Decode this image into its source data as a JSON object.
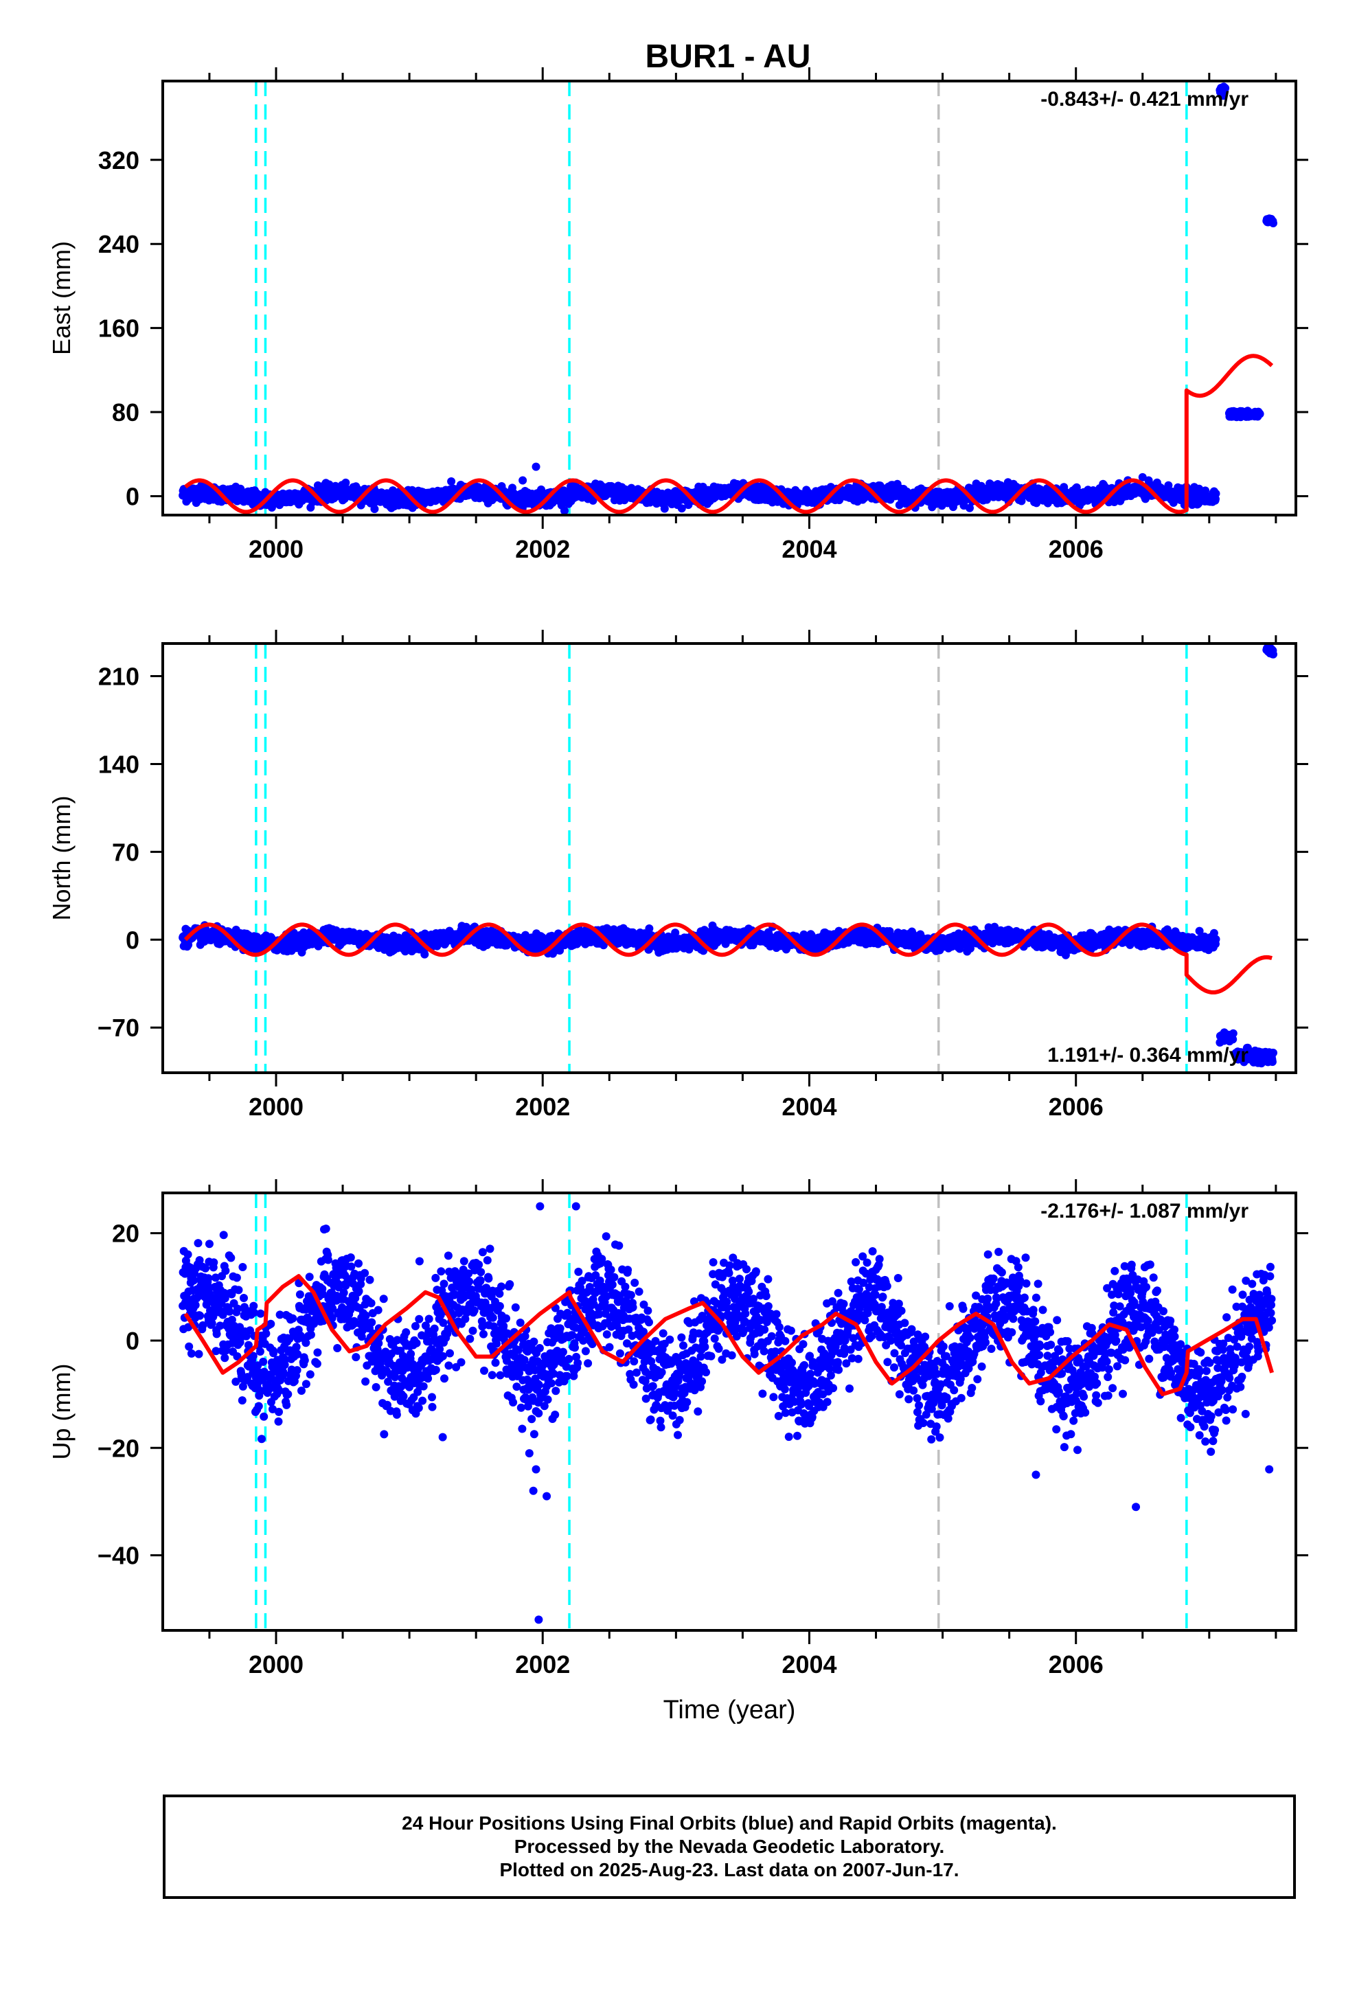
{
  "figure": {
    "title": "BUR1 - AU",
    "footer_lines": [
      "24 Hour Positions Using Final Orbits (blue) and Rapid Orbits (magenta).",
      "Processed by the Nevada Geodetic Laboratory.",
      "Plotted on 2025-Aug-23. Last data on 2007-Jun-17."
    ]
  },
  "chart_data": [
    {
      "type": "scatter",
      "component": "East",
      "ylabel": "East (mm)",
      "xlabel": "",
      "xlim": [
        1999.15,
        2007.65
      ],
      "ylim": [
        -18,
        395
      ],
      "yticks": [
        0,
        80,
        160,
        240,
        320
      ],
      "xticks": [
        2000,
        2002,
        2004,
        2006
      ],
      "velocity_label": "-0.843+/- 0.421 mm/yr",
      "velocity_label_position": "top-right",
      "point_color": "#0000ff",
      "model_color": "#ff0000",
      "data_segments": [
        {
          "x_start": 1999.3,
          "x_end": 2007.05,
          "baseline": 0,
          "trend": 0.3,
          "noise": 3.5,
          "seasonal_amp": 3
        },
        {
          "x_start": 2007.08,
          "x_end": 2007.12,
          "baseline": 387,
          "trend": 0,
          "noise": 2,
          "seasonal_amp": 0
        },
        {
          "x_start": 2007.15,
          "x_end": 2007.38,
          "baseline": 78,
          "trend": 0,
          "noise": 1.5,
          "seasonal_amp": 0
        },
        {
          "x_start": 2007.43,
          "x_end": 2007.48,
          "baseline": 262,
          "trend": 0,
          "noise": 1.5,
          "seasonal_amp": 0
        }
      ],
      "outliers": [
        {
          "x": 2001.95,
          "y": 28
        },
        {
          "x": 2001.85,
          "y": 15
        },
        {
          "x": 2006.5,
          "y": 18
        }
      ],
      "model": {
        "segments": [
          {
            "x_start": 1999.32,
            "x_end": 2006.83,
            "offset": 0,
            "trend": 0,
            "amp": 15,
            "period": 0.7,
            "phase": 0.1
          },
          {
            "x_start": 2006.83,
            "x_end": 2007.47,
            "offset": 110,
            "trend": 15,
            "amp": 16,
            "period": 0.75,
            "phase": 0.6
          }
        ]
      },
      "step_lines": [
        {
          "x": 1999.85,
          "color": "#00ffff"
        },
        {
          "x": 1999.92,
          "color": "#00ffff"
        },
        {
          "x": 2002.2,
          "color": "#00ffff"
        },
        {
          "x": 2004.97,
          "color": "#c0c0c0"
        },
        {
          "x": 2006.83,
          "color": "#00ffff"
        }
      ]
    },
    {
      "type": "scatter",
      "component": "North",
      "ylabel": "North (mm)",
      "xlabel": "",
      "xlim": [
        1999.15,
        2007.65
      ],
      "ylim": [
        -106,
        236
      ],
      "yticks": [
        -70,
        0,
        70,
        140,
        210
      ],
      "xticks": [
        2000,
        2002,
        2004,
        2006
      ],
      "velocity_label": "1.191+/- 0.364 mm/yr",
      "velocity_label_position": "bottom-right",
      "point_color": "#0000ff",
      "model_color": "#ff0000",
      "data_segments": [
        {
          "x_start": 1999.3,
          "x_end": 2007.05,
          "baseline": 0,
          "trend": 0,
          "noise": 3,
          "seasonal_amp": 3
        },
        {
          "x_start": 2007.08,
          "x_end": 2007.18,
          "baseline": -78,
          "trend": 0,
          "noise": 2,
          "seasonal_amp": 0
        },
        {
          "x_start": 2007.2,
          "x_end": 2007.48,
          "baseline": -93,
          "trend": 0,
          "noise": 3,
          "seasonal_amp": 0
        },
        {
          "x_start": 2007.43,
          "x_end": 2007.48,
          "baseline": 230,
          "trend": 0,
          "noise": 1.5,
          "seasonal_amp": 0
        }
      ],
      "outliers": [],
      "model": {
        "segments": [
          {
            "x_start": 1999.32,
            "x_end": 2006.83,
            "offset": 0,
            "trend": 0,
            "amp": 12,
            "period": 0.7,
            "phase": 0.0
          },
          {
            "x_start": 2006.83,
            "x_end": 2007.47,
            "offset": -28,
            "trend": 0,
            "amp": 14,
            "period": 0.8,
            "phase": 0.5
          }
        ]
      },
      "step_lines": [
        {
          "x": 1999.85,
          "color": "#00ffff"
        },
        {
          "x": 1999.92,
          "color": "#00ffff"
        },
        {
          "x": 2002.2,
          "color": "#00ffff"
        },
        {
          "x": 2004.97,
          "color": "#c0c0c0"
        },
        {
          "x": 2006.83,
          "color": "#00ffff"
        }
      ]
    },
    {
      "type": "scatter",
      "component": "Up",
      "ylabel": "Up (mm)",
      "xlabel": "Time (year)",
      "xlim": [
        1999.15,
        2007.65
      ],
      "ylim": [
        -54,
        27.5
      ],
      "yticks": [
        -40,
        -20,
        0,
        20
      ],
      "xticks": [
        2000,
        2002,
        2004,
        2006
      ],
      "velocity_label": "-2.176+/- 1.087 mm/yr",
      "velocity_label_position": "top-right",
      "point_color": "#0000ff",
      "model_color": "#ff0000",
      "data_segments": [
        {
          "x_start": 1999.3,
          "x_end": 2007.47,
          "baseline": 2,
          "trend": -0.5,
          "noise": 4.5,
          "seasonal_amp": 8
        }
      ],
      "outliers": [
        {
          "x": 2001.97,
          "y": -52
        },
        {
          "x": 2001.93,
          "y": -28
        },
        {
          "x": 2001.95,
          "y": -24
        },
        {
          "x": 2001.9,
          "y": -21
        },
        {
          "x": 2002.03,
          "y": -29
        },
        {
          "x": 2001.98,
          "y": 25
        },
        {
          "x": 2002.25,
          "y": 25
        },
        {
          "x": 1999.5,
          "y": 18
        },
        {
          "x": 2006.45,
          "y": -31
        },
        {
          "x": 2007.45,
          "y": -24
        },
        {
          "x": 2005.7,
          "y": -25
        },
        {
          "x": 2001.25,
          "y": -18
        }
      ],
      "model": {
        "points": [
          [
            1999.32,
            5
          ],
          [
            1999.45,
            0
          ],
          [
            1999.6,
            -6
          ],
          [
            1999.72,
            -4
          ],
          [
            1999.85,
            -1
          ],
          [
            1999.86,
            2
          ],
          [
            1999.92,
            3
          ],
          [
            1999.93,
            7
          ],
          [
            2000.05,
            10
          ],
          [
            2000.17,
            12
          ],
          [
            2000.28,
            9
          ],
          [
            2000.42,
            2
          ],
          [
            2000.55,
            -2
          ],
          [
            2000.68,
            -1
          ],
          [
            2000.82,
            3
          ],
          [
            2000.98,
            6
          ],
          [
            2001.12,
            9
          ],
          [
            2001.22,
            8
          ],
          [
            2001.35,
            2
          ],
          [
            2001.5,
            -3
          ],
          [
            2001.62,
            -3
          ],
          [
            2001.8,
            1
          ],
          [
            2001.98,
            5
          ],
          [
            2002.2,
            9
          ],
          [
            2002.21,
            8
          ],
          [
            2002.33,
            3
          ],
          [
            2002.45,
            -2
          ],
          [
            2002.6,
            -4
          ],
          [
            2002.75,
            0
          ],
          [
            2002.92,
            4
          ],
          [
            2003.1,
            6
          ],
          [
            2003.2,
            7
          ],
          [
            2003.35,
            3
          ],
          [
            2003.5,
            -3
          ],
          [
            2003.62,
            -6
          ],
          [
            2003.78,
            -3
          ],
          [
            2003.95,
            1
          ],
          [
            2004.1,
            3
          ],
          [
            2004.2,
            5
          ],
          [
            2004.35,
            3
          ],
          [
            2004.5,
            -4
          ],
          [
            2004.62,
            -8
          ],
          [
            2004.78,
            -5
          ],
          [
            2004.97,
            0
          ],
          [
            2005.12,
            3
          ],
          [
            2005.25,
            5
          ],
          [
            2005.38,
            3
          ],
          [
            2005.52,
            -4
          ],
          [
            2005.65,
            -8
          ],
          [
            2005.8,
            -7
          ],
          [
            2005.97,
            -3
          ],
          [
            2006.12,
            0
          ],
          [
            2006.25,
            3
          ],
          [
            2006.38,
            2
          ],
          [
            2006.52,
            -5
          ],
          [
            2006.65,
            -10
          ],
          [
            2006.78,
            -9
          ],
          [
            2006.83,
            -6
          ],
          [
            2006.84,
            -2
          ],
          [
            2006.98,
            0
          ],
          [
            2007.12,
            2
          ],
          [
            2007.25,
            4
          ],
          [
            2007.35,
            4
          ],
          [
            2007.47,
            -6
          ]
        ]
      },
      "step_lines": [
        {
          "x": 1999.85,
          "color": "#00ffff"
        },
        {
          "x": 1999.92,
          "color": "#00ffff"
        },
        {
          "x": 2002.2,
          "color": "#00ffff"
        },
        {
          "x": 2004.97,
          "color": "#c0c0c0"
        },
        {
          "x": 2006.83,
          "color": "#00ffff"
        }
      ]
    }
  ]
}
